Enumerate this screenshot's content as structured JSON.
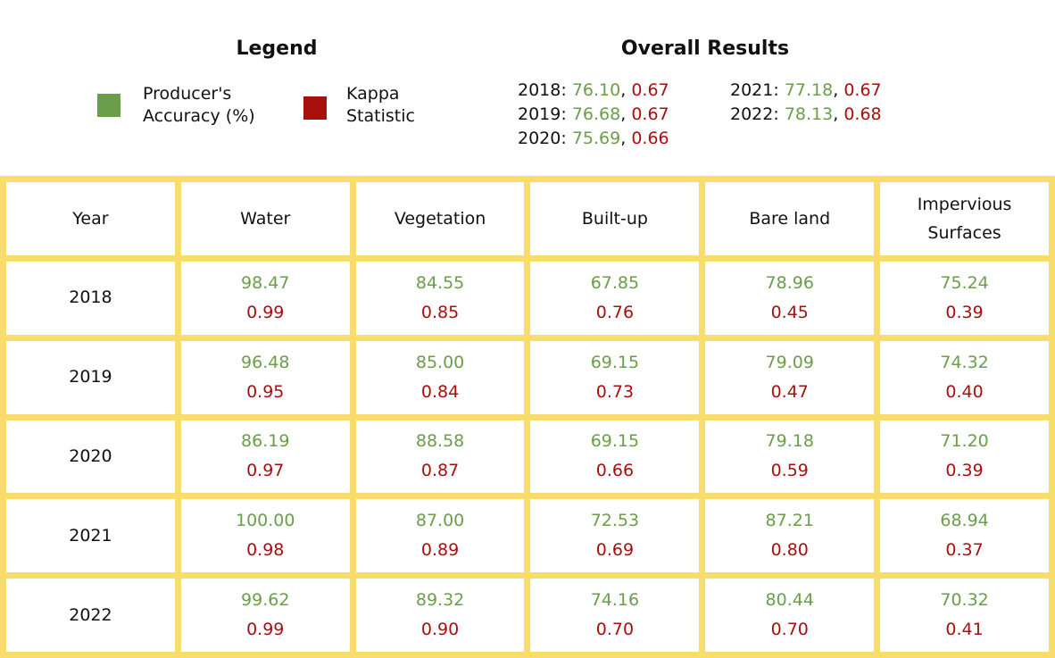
{
  "legend": {
    "title": "Legend",
    "items": [
      {
        "label": "Producer's\nAccuracy (%)",
        "color": "#6a9e4a",
        "icon": "green-square"
      },
      {
        "label": "Kappa\nStatistic",
        "color": "#a80f0f",
        "icon": "red-square"
      }
    ]
  },
  "overall": {
    "title": "Overall Results",
    "entries": [
      {
        "year": "2018",
        "accuracy": "76.10",
        "kappa": "0.67"
      },
      {
        "year": "2019",
        "accuracy": "76.68",
        "kappa": "0.67"
      },
      {
        "year": "2020",
        "accuracy": "75.69",
        "kappa": "0.66"
      },
      {
        "year": "2021",
        "accuracy": "77.18",
        "kappa": "0.67"
      },
      {
        "year": "2022",
        "accuracy": "78.13",
        "kappa": "0.68"
      }
    ]
  },
  "table": {
    "headers": [
      "Year",
      "Water",
      "Vegetation",
      "Built-up",
      "Bare land",
      "Impervious\nSurfaces"
    ],
    "rows": [
      {
        "year": "2018",
        "cells": [
          {
            "accuracy": "98.47",
            "kappa": "0.99"
          },
          {
            "accuracy": "84.55",
            "kappa": "0.85"
          },
          {
            "accuracy": "67.85",
            "kappa": "0.76"
          },
          {
            "accuracy": "78.96",
            "kappa": "0.45"
          },
          {
            "accuracy": "75.24",
            "kappa": "0.39"
          }
        ]
      },
      {
        "year": "2019",
        "cells": [
          {
            "accuracy": "96.48",
            "kappa": "0.95"
          },
          {
            "accuracy": "85.00",
            "kappa": "0.84"
          },
          {
            "accuracy": "69.15",
            "kappa": "0.73"
          },
          {
            "accuracy": "79.09",
            "kappa": "0.47"
          },
          {
            "accuracy": "74.32",
            "kappa": "0.40"
          }
        ]
      },
      {
        "year": "2020",
        "cells": [
          {
            "accuracy": "86.19",
            "kappa": "0.97"
          },
          {
            "accuracy": "88.58",
            "kappa": "0.87"
          },
          {
            "accuracy": "69.15",
            "kappa": "0.66"
          },
          {
            "accuracy": "79.18",
            "kappa": "0.59"
          },
          {
            "accuracy": "71.20",
            "kappa": "0.39"
          }
        ]
      },
      {
        "year": "2021",
        "cells": [
          {
            "accuracy": "100.00",
            "kappa": "0.98"
          },
          {
            "accuracy": "87.00",
            "kappa": "0.89"
          },
          {
            "accuracy": "72.53",
            "kappa": "0.69"
          },
          {
            "accuracy": "87.21",
            "kappa": "0.80"
          },
          {
            "accuracy": "68.94",
            "kappa": "0.37"
          }
        ]
      },
      {
        "year": "2022",
        "cells": [
          {
            "accuracy": "99.62",
            "kappa": "0.99"
          },
          {
            "accuracy": "89.32",
            "kappa": "0.90"
          },
          {
            "accuracy": "74.16",
            "kappa": "0.70"
          },
          {
            "accuracy": "80.44",
            "kappa": "0.70"
          },
          {
            "accuracy": "70.32",
            "kappa": "0.41"
          }
        ]
      }
    ]
  },
  "colors": {
    "accent_green": "#6a9e4a",
    "accent_red": "#a80f0f",
    "border": "#f9dd6a"
  }
}
